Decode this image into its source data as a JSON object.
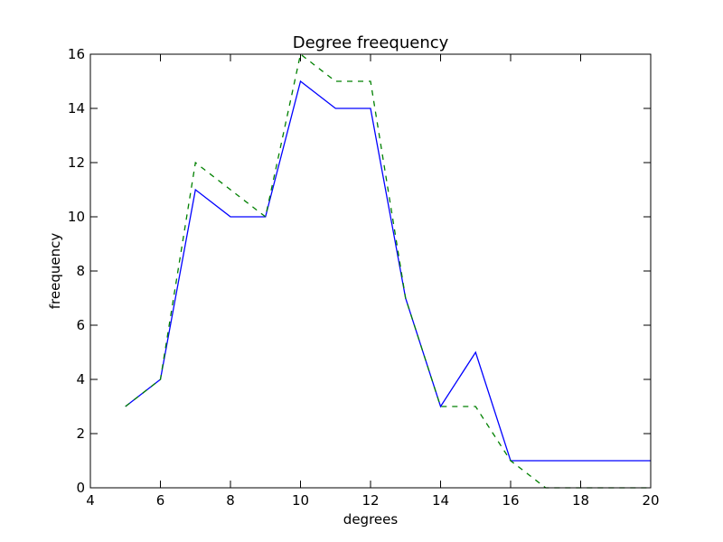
{
  "chart_data": {
    "type": "line",
    "title": "Degree freequency",
    "xlabel": "degrees",
    "ylabel": "freequency",
    "xlim": [
      4,
      20
    ],
    "ylim": [
      0,
      16
    ],
    "xticks": [
      4,
      6,
      8,
      10,
      12,
      14,
      16,
      18,
      20
    ],
    "yticks": [
      0,
      2,
      4,
      6,
      8,
      10,
      12,
      14,
      16
    ],
    "grid": false,
    "series": [
      {
        "color": "#0000ff",
        "linestyle": "solid",
        "x": [
          5,
          6,
          7,
          8,
          9,
          10,
          11,
          12,
          13,
          14,
          15,
          16,
          17,
          18,
          19,
          20
        ],
        "y": [
          3,
          4,
          11,
          10,
          10,
          15,
          14,
          14,
          7,
          3,
          5,
          1,
          1,
          1,
          1,
          1
        ]
      },
      {
        "color": "#008000",
        "linestyle": "dashed",
        "x": [
          5,
          6,
          7,
          8,
          9,
          10,
          11,
          12,
          13,
          14,
          15,
          16,
          17,
          18,
          19,
          20
        ],
        "y": [
          3,
          4,
          12,
          11,
          10,
          16,
          15,
          15,
          7,
          3,
          3,
          1,
          0,
          0,
          0,
          0
        ]
      }
    ]
  }
}
